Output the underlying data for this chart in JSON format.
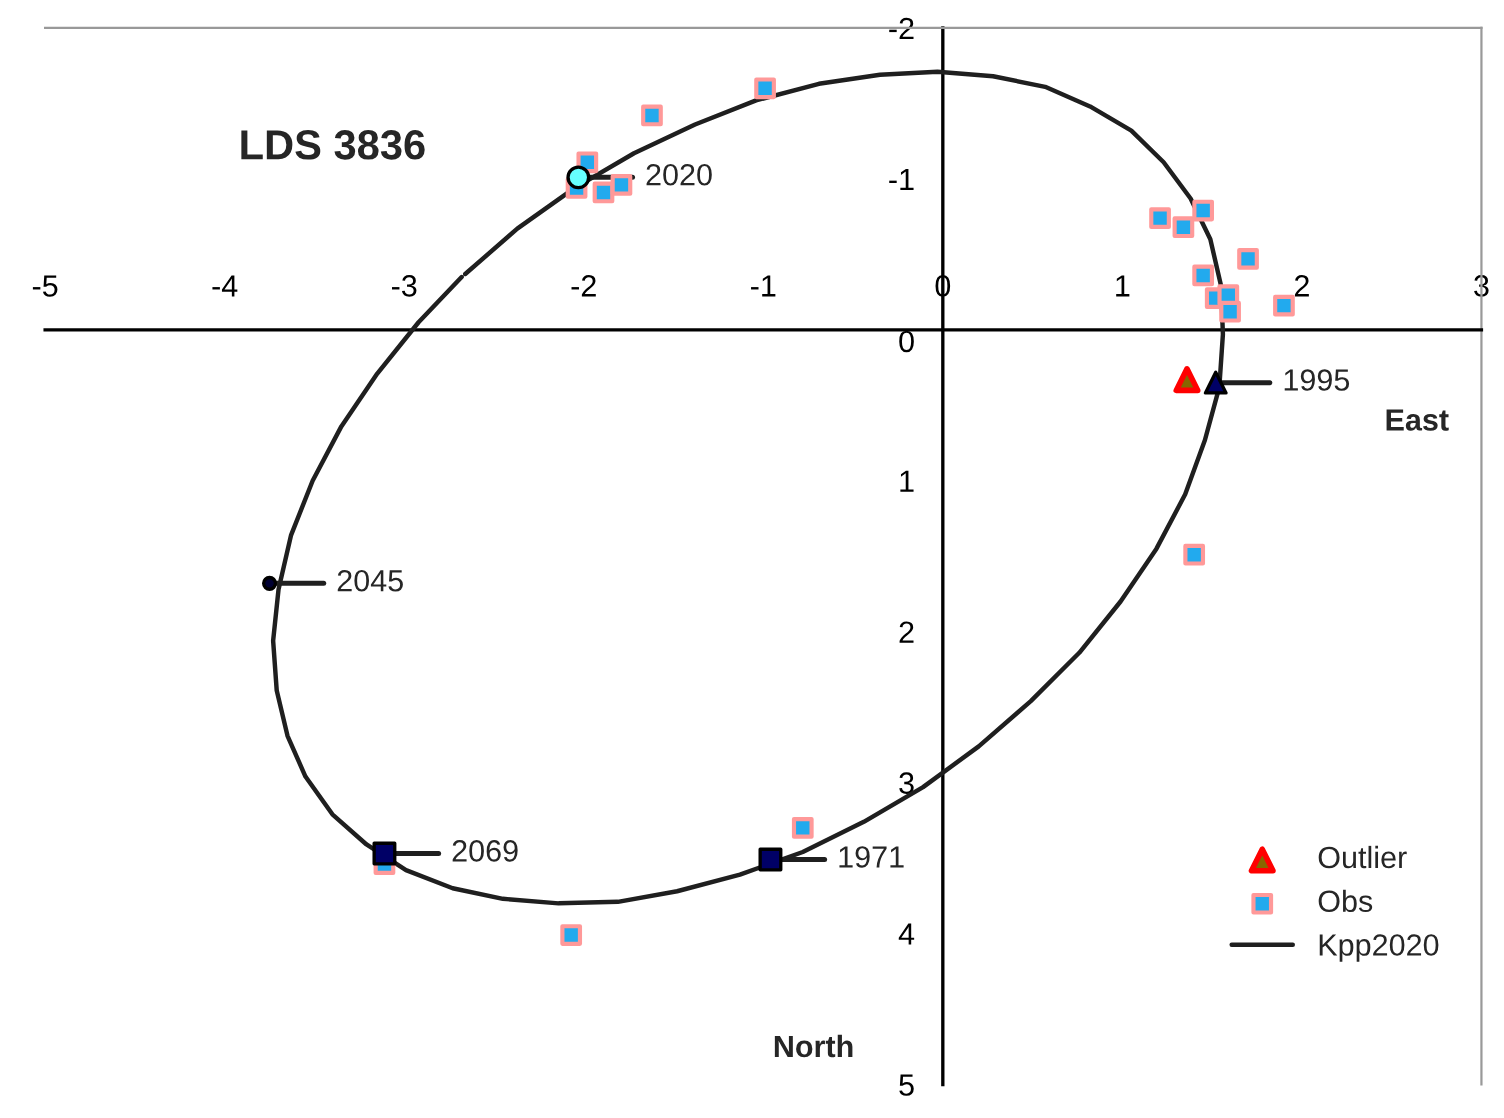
{
  "chart_data": {
    "type": "scatter",
    "title": "LDS 3836",
    "xlabel": "East",
    "ylabel": "North",
    "xlim": [
      -5,
      3
    ],
    "ylim": [
      5,
      -2
    ],
    "xticks": [
      -5,
      -4,
      -3,
      -2,
      -1,
      0,
      1,
      2,
      3
    ],
    "yticks": [
      -2,
      -1,
      0,
      1,
      2,
      3,
      4,
      5
    ],
    "grid": false,
    "legend": "bottom right",
    "series": [
      {
        "name": "Outlier",
        "marker": "triangle",
        "color": "#ff0000",
        "x": [
          1.36
        ],
        "values": [
          0.33
        ]
      },
      {
        "name": "Obs",
        "marker": "square",
        "color": "#ff9999",
        "x": [
          -0.99,
          -1.62,
          -1.98,
          -2.04,
          -1.89,
          -1.79,
          1.21,
          1.34,
          1.45,
          1.7,
          1.45,
          1.52,
          1.59,
          1.6,
          1.9,
          1.4,
          -3.11,
          -0.78,
          -2.07
        ],
        "values": [
          -1.6,
          -1.42,
          -1.11,
          -0.94,
          -0.91,
          -0.96,
          -0.74,
          -0.68,
          -0.79,
          -0.47,
          -0.36,
          -0.21,
          -0.23,
          -0.12,
          -0.16,
          1.49,
          3.54,
          3.3,
          4.01
        ]
      },
      {
        "name": "Kpp2020",
        "type": "line",
        "marker": "none",
        "line_style": "solid",
        "color": "#1f1f1f",
        "x": [
          -2.66,
          -2.37,
          -2.05,
          -1.72,
          -1.38,
          -1.04,
          -0.69,
          -0.35,
          -0.03,
          0.28,
          0.57,
          0.82,
          1.05,
          1.23,
          1.38,
          1.49,
          1.55,
          1.56,
          1.54,
          1.46,
          1.35,
          1.19,
          0.99,
          0.76,
          0.49,
          0.2,
          -0.11,
          -0.44,
          -0.78,
          -1.13,
          -1.48,
          -1.81,
          -2.14,
          -2.45,
          -2.73,
          -2.99,
          -3.21,
          -3.4,
          -3.55,
          -3.65,
          -3.71,
          -3.73,
          -3.7,
          -3.63,
          -3.51,
          -3.35,
          -3.15,
          -2.92,
          -2.68
        ],
        "values": [
          -0.37,
          -0.67,
          -0.94,
          -1.17,
          -1.36,
          -1.52,
          -1.63,
          -1.69,
          -1.71,
          -1.68,
          -1.61,
          -1.48,
          -1.32,
          -1.11,
          -0.87,
          -0.6,
          -0.29,
          0.03,
          0.38,
          0.73,
          1.09,
          1.45,
          1.8,
          2.14,
          2.46,
          2.76,
          3.03,
          3.26,
          3.46,
          3.61,
          3.72,
          3.79,
          3.8,
          3.77,
          3.7,
          3.58,
          3.41,
          3.21,
          2.96,
          2.69,
          2.39,
          2.06,
          1.72,
          1.36,
          1.0,
          0.64,
          0.29,
          -0.05,
          -0.35
        ]
      },
      {
        "marker": "circle",
        "color": "#66ffff",
        "x": [
          -2.03
        ],
        "values": [
          -1.01
        ]
      },
      {
        "marker": "triangle",
        "color": "#000066",
        "x": [
          1.52
        ],
        "values": [
          0.35
        ]
      },
      {
        "marker": "circle",
        "color": "#000033",
        "x": [
          -3.75
        ],
        "values": [
          1.68
        ]
      },
      {
        "marker": "square",
        "color": "#000066",
        "x": [
          -3.11
        ],
        "values": [
          3.47
        ]
      },
      {
        "marker": "square",
        "color": "#000066",
        "x": [
          -0.96
        ],
        "values": [
          3.51
        ]
      }
    ],
    "annotations": [
      {
        "text": "2020",
        "x": -2.03,
        "y": -1.01
      },
      {
        "text": "1995",
        "x": 1.52,
        "y": 0.35
      },
      {
        "text": "2045",
        "x": -3.75,
        "y": 1.68
      },
      {
        "text": "2069",
        "x": -3.11,
        "y": 3.47
      },
      {
        "text": "1971",
        "x": -0.96,
        "y": 3.51
      }
    ]
  }
}
